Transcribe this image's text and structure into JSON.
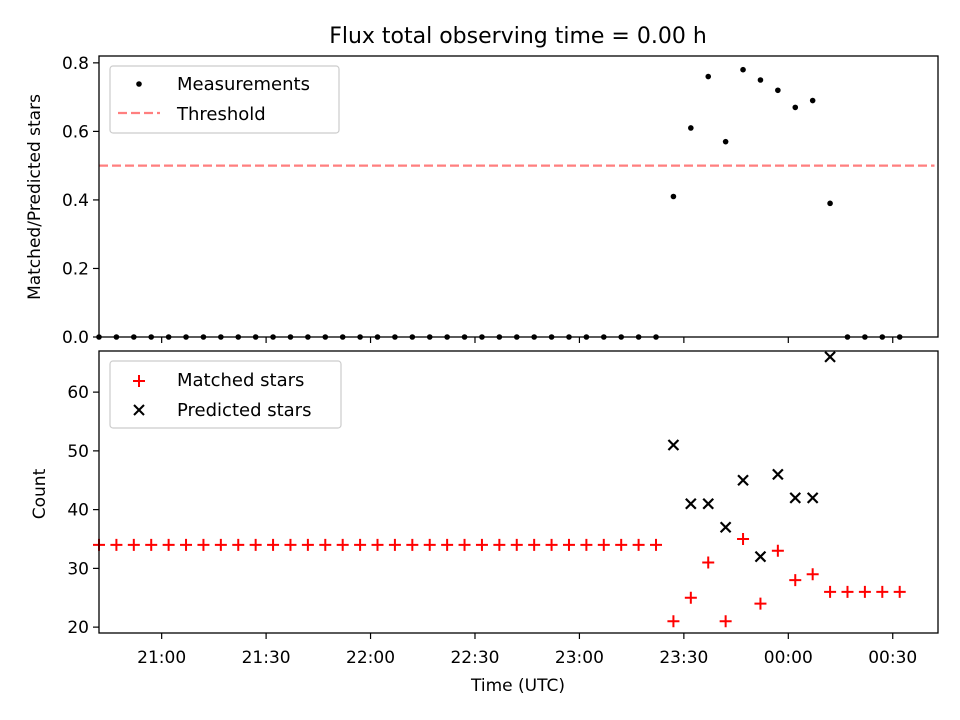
{
  "chart_data": [
    {
      "type": "scatter",
      "title": "Flux total observing time = 0.00 h",
      "xlabel": "",
      "ylabel": "Matched/Predicted stars",
      "xlim": [
        "20:42",
        "00:43"
      ],
      "ylim": [
        0,
        0.82
      ],
      "yticks": [
        0.0,
        0.2,
        0.4,
        0.6,
        0.8
      ],
      "ytick_labels": [
        "0.0",
        "0.2",
        "0.4",
        "0.6",
        "0.8"
      ],
      "legend_position": "upper-left",
      "grid": false,
      "series": [
        {
          "name": "Measurements",
          "marker": "dot",
          "color": "#000000",
          "x": [
            "20:42",
            "20:47",
            "20:52",
            "20:57",
            "21:02",
            "21:07",
            "21:12",
            "21:17",
            "21:22",
            "21:27",
            "21:32",
            "21:37",
            "21:42",
            "21:47",
            "21:52",
            "21:57",
            "22:02",
            "22:07",
            "22:12",
            "22:17",
            "22:22",
            "22:27",
            "22:32",
            "22:37",
            "22:42",
            "22:47",
            "22:52",
            "22:57",
            "23:02",
            "23:07",
            "23:12",
            "23:17",
            "23:22",
            "23:27",
            "23:32",
            "23:37",
            "23:42",
            "23:47",
            "23:52",
            "23:57",
            "00:02",
            "00:07",
            "00:12",
            "00:17",
            "00:22",
            "00:27",
            "00:32"
          ],
          "y": [
            0,
            0,
            0,
            0,
            0,
            0,
            0,
            0,
            0,
            0,
            0,
            0,
            0,
            0,
            0,
            0,
            0,
            0,
            0,
            0,
            0,
            0,
            0,
            0,
            0,
            0,
            0,
            0,
            0,
            0,
            0,
            0,
            0,
            0.41,
            0.61,
            0.76,
            0.57,
            0.78,
            0.75,
            0.72,
            0.67,
            0.69,
            0.39,
            0,
            0,
            0,
            0
          ]
        },
        {
          "name": "Threshold",
          "line": "dashed",
          "color": "#ff7f7f",
          "x": [
            "20:42",
            "00:42"
          ],
          "y": [
            0.5,
            0.5
          ]
        }
      ]
    },
    {
      "type": "scatter",
      "title": "",
      "xlabel": "Time (UTC)",
      "ylabel": "Count",
      "xlim": [
        "20:42",
        "00:43"
      ],
      "xticks": [
        "21:00",
        "21:30",
        "22:00",
        "22:30",
        "23:00",
        "23:30",
        "00:00",
        "00:30"
      ],
      "ylim": [
        19,
        67
      ],
      "yticks": [
        20,
        30,
        40,
        50,
        60
      ],
      "ytick_labels": [
        "20",
        "30",
        "40",
        "50",
        "60"
      ],
      "legend_position": "upper-left",
      "grid": false,
      "series": [
        {
          "name": "Matched stars",
          "marker": "plus",
          "color": "#ff0000",
          "x": [
            "20:42",
            "20:47",
            "20:52",
            "20:57",
            "21:02",
            "21:07",
            "21:12",
            "21:17",
            "21:22",
            "21:27",
            "21:32",
            "21:37",
            "21:42",
            "21:47",
            "21:52",
            "21:57",
            "22:02",
            "22:07",
            "22:12",
            "22:17",
            "22:22",
            "22:27",
            "22:32",
            "22:37",
            "22:42",
            "22:47",
            "22:52",
            "22:57",
            "23:02",
            "23:07",
            "23:12",
            "23:17",
            "23:22",
            "23:27",
            "23:32",
            "23:37",
            "23:42",
            "23:47",
            "23:52",
            "23:57",
            "00:02",
            "00:07",
            "00:12",
            "00:17",
            "00:22",
            "00:27",
            "00:32"
          ],
          "y": [
            34,
            34,
            34,
            34,
            34,
            34,
            34,
            34,
            34,
            34,
            34,
            34,
            34,
            34,
            34,
            34,
            34,
            34,
            34,
            34,
            34,
            34,
            34,
            34,
            34,
            34,
            34,
            34,
            34,
            34,
            34,
            34,
            34,
            21,
            25,
            31,
            21,
            35,
            24,
            33,
            28,
            29,
            26,
            26,
            26,
            26,
            26
          ]
        },
        {
          "name": "Predicted stars",
          "marker": "x",
          "color": "#000000",
          "x": [
            "23:27",
            "23:32",
            "23:37",
            "23:42",
            "23:47",
            "23:52",
            "23:57",
            "00:02",
            "00:07",
            "00:12"
          ],
          "y": [
            51,
            41,
            41,
            37,
            45,
            32,
            46,
            42,
            42,
            66
          ]
        }
      ]
    }
  ]
}
